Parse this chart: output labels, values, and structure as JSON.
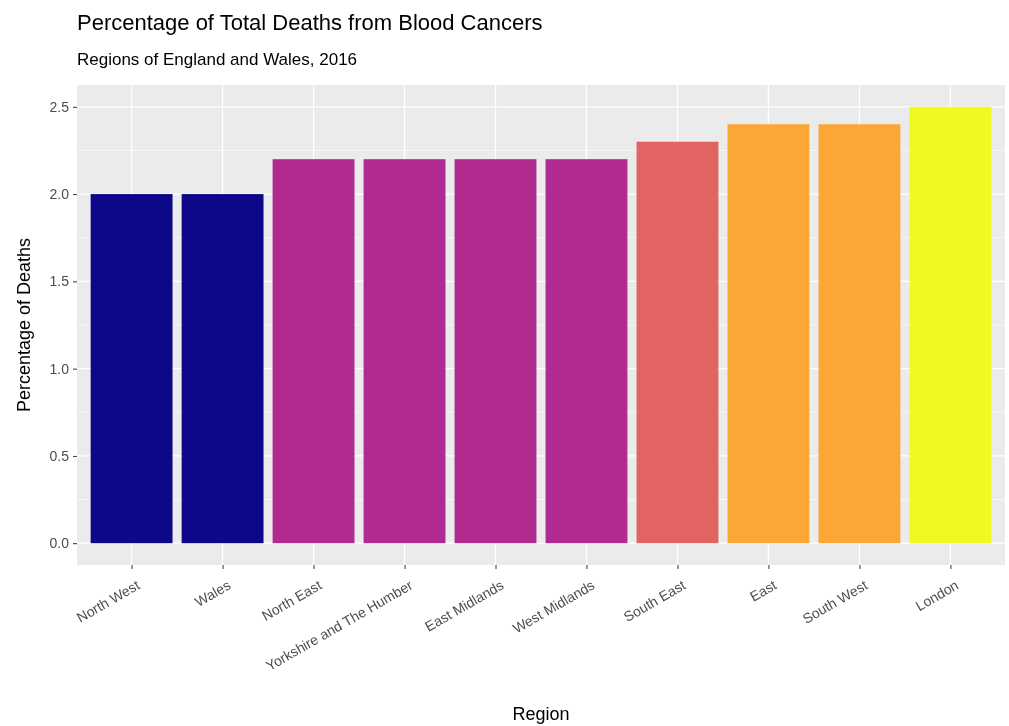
{
  "chart_data": {
    "type": "bar",
    "title": "Percentage of Total Deaths from Blood Cancers",
    "subtitle": "Regions of England and Wales, 2016",
    "xlabel": "Region",
    "ylabel": "Percentage of Deaths",
    "categories": [
      "North West",
      "Wales",
      "North East",
      "Yorkshire and The Humber",
      "East Midlands",
      "West Midlands",
      "South East",
      "East",
      "South West",
      "London"
    ],
    "values": [
      2.0,
      2.0,
      2.2,
      2.2,
      2.2,
      2.2,
      2.3,
      2.4,
      2.4,
      2.5
    ],
    "colors": [
      "#0d0887",
      "#0d0887",
      "#b12a90",
      "#b12a90",
      "#b12a90",
      "#b12a90",
      "#e16462",
      "#fca636",
      "#fca636",
      "#f0f921"
    ],
    "ylim": [
      -0.125,
      2.625
    ],
    "yticks": [
      {
        "value": 0,
        "label": "0.0"
      },
      {
        "value": 0.5,
        "label": "0.5"
      },
      {
        "value": 1,
        "label": "1.0"
      },
      {
        "value": 1.5,
        "label": "1.5"
      },
      {
        "value": 2,
        "label": "2.0"
      },
      {
        "value": 2.5,
        "label": "2.5"
      }
    ],
    "grid": true
  }
}
